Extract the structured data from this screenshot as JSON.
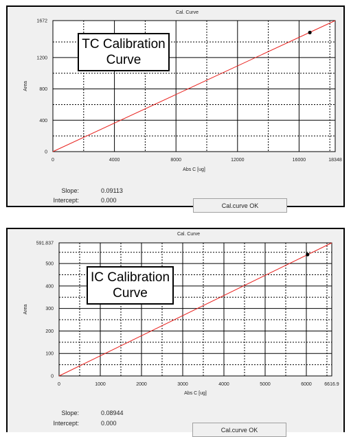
{
  "colors": {
    "line": "#e8201c",
    "point": "#000000",
    "grid": "#000000",
    "background": "#f0f0f0"
  },
  "chart_data": [
    {
      "type": "line",
      "title": "Cal. Curve",
      "xlabel": "Abs C [ug]",
      "ylabel": "Area",
      "xlim": [
        0,
        18348
      ],
      "ylim": [
        0,
        1672
      ],
      "xticks": [
        0,
        4000,
        8000,
        12000,
        16000,
        18348
      ],
      "xtick_labels": [
        "0",
        "4000",
        "8000",
        "12000",
        "16000",
        "18348"
      ],
      "yticks": [
        0,
        400,
        800,
        1200,
        1672
      ],
      "ytick_labels": [
        "0",
        "400",
        "800",
        "1200",
        "1672"
      ],
      "series": [
        {
          "x": [
            0,
            18348
          ],
          "y": [
            0,
            1672
          ]
        }
      ],
      "points": [
        {
          "x": 16700,
          "y": 1520
        }
      ],
      "grid": true,
      "annotation": [
        "TC Calibration",
        "Curve"
      ],
      "slope_label": "Slope:",
      "slope": "0.09113",
      "intercept_label": "Intercept:",
      "intercept": "0.000",
      "button": "Cal.curve OK"
    },
    {
      "type": "line",
      "title": "Cal. Curve",
      "xlabel": "Abs C [ug]",
      "ylabel": "Area",
      "xlim": [
        0,
        6616.9
      ],
      "ylim": [
        0,
        591.837
      ],
      "xticks": [
        0,
        1000,
        2000,
        3000,
        4000,
        5000,
        6000,
        6616.9
      ],
      "xtick_labels": [
        "0",
        "1000",
        "2000",
        "3000",
        "4000",
        "5000",
        "6000",
        "6616.9"
      ],
      "yticks": [
        0,
        100,
        200,
        300,
        400,
        500,
        591.837
      ],
      "ytick_labels": [
        "0",
        "100",
        "200",
        "300",
        "400",
        "500",
        "591.837"
      ],
      "series": [
        {
          "x": [
            0,
            6616.9
          ],
          "y": [
            0,
            591.837
          ]
        }
      ],
      "points": [
        {
          "x": 6030,
          "y": 540
        }
      ],
      "grid": true,
      "annotation": [
        "IC Calibration",
        "Curve"
      ],
      "slope_label": "Slope:",
      "slope": "0.08944",
      "intercept_label": "Intercept:",
      "intercept": "0.000",
      "button": "Cal.curve OK"
    }
  ]
}
